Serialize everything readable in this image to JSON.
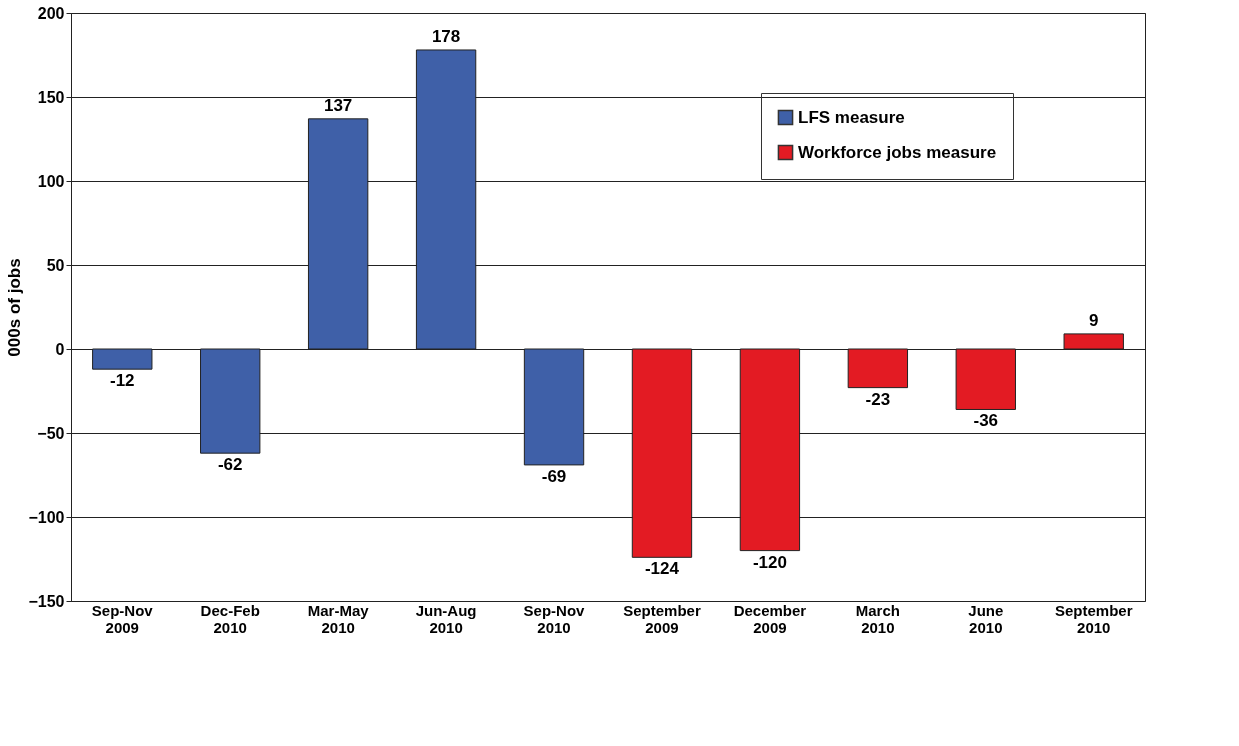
{
  "chart_data": {
    "type": "bar",
    "ylabel": "000s of jobs",
    "categories": [
      "Sep-Nov 2009",
      "Dec-Feb 2010",
      "Mar-May 2010",
      "Jun-Aug 2010",
      "Sep-Nov 2010",
      "September 2009",
      "December 2009",
      "March 2010",
      "June 2010",
      "September 2010"
    ],
    "series": [
      {
        "name": "LFS measure",
        "color": "#3f60a8",
        "values": [
          -12,
          -62,
          137,
          178,
          -69,
          null,
          null,
          null,
          null,
          null
        ]
      },
      {
        "name": "Workforce jobs measure",
        "color": "#e31b23",
        "values": [
          null,
          null,
          null,
          null,
          null,
          -124,
          -120,
          -23,
          -36,
          9
        ]
      }
    ],
    "ylim": [
      -150,
      200
    ],
    "yticks": [
      -150,
      -100,
      -50,
      0,
      50,
      100,
      150,
      200
    ],
    "grid": "y",
    "legend": "top right",
    "data_labels": true
  }
}
